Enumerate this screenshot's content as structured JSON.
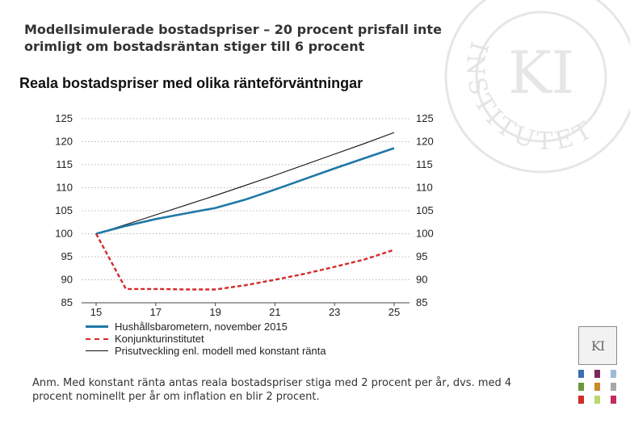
{
  "slide": {
    "title": "Modellsimulerade bostadspriser – 20 procent prisfall inte orimligt om bostadsräntan stiger till 6 procent",
    "subtitle": "Reala bostadspriser med olika ränteförväntningar",
    "note": "Anm. Med konstant ränta antas reala bostadspriser stiga med 2 procent per år, dvs. med 4 procent nominellt per år om inflation en blir 2 procent.",
    "logo_text": "KI",
    "seal_text": "INSTITUTET",
    "seal_monogram": "KI"
  },
  "colors": {
    "blue": "#1f78a8",
    "red": "#d42a2a",
    "black": "#111111",
    "grid": "#b8b8b8",
    "swatches": [
      "#3a6fb0",
      "#7a2a5a",
      "#9bbcd8",
      "#6a9a3a",
      "#c98a2a",
      "#a8a8a8",
      "#d42a2a",
      "#b8d870",
      "#c42a5a"
    ]
  },
  "chart_data": {
    "type": "line",
    "title": "Reala bostadspriser med olika ränteförväntningar",
    "xlabel": "",
    "ylabel": "",
    "xlim": [
      15,
      25
    ],
    "ylim": [
      85,
      125
    ],
    "x_ticks": [
      "15",
      "17",
      "19",
      "21",
      "23",
      "25"
    ],
    "y_ticks": [
      "85",
      "90",
      "95",
      "100",
      "105",
      "110",
      "115",
      "120",
      "125"
    ],
    "grid": "horizontal-dotted",
    "legend_position": "bottom",
    "series": [
      {
        "name": "Hushållsbarometern, november 2015",
        "style": "solid-thick",
        "color": "#1f78a8",
        "x": [
          15,
          16,
          17,
          18,
          19,
          20,
          21,
          22,
          23,
          24,
          25
        ],
        "y": [
          100,
          101.7,
          103.2,
          104.4,
          105.6,
          107.4,
          109.6,
          111.9,
          114.2,
          116.4,
          118.6
        ]
      },
      {
        "name": "Konjunkturinstitutet",
        "style": "dashed",
        "color": "#d42a2a",
        "x": [
          15,
          16,
          17,
          18,
          19,
          20,
          21,
          22,
          23,
          24,
          25
        ],
        "y": [
          100,
          88,
          88,
          87.9,
          87.9,
          88.8,
          90,
          91.3,
          92.8,
          94.4,
          96.5
        ]
      },
      {
        "name": "Prisutveckling enl. modell med konstant ränta",
        "style": "solid-thin",
        "color": "#111111",
        "x": [
          15,
          16,
          17,
          18,
          19,
          20,
          21,
          22,
          23,
          24,
          25
        ],
        "y": [
          100,
          102,
          104.1,
          106.2,
          108.3,
          110.5,
          112.7,
          115,
          117.3,
          119.6,
          122
        ]
      }
    ]
  }
}
